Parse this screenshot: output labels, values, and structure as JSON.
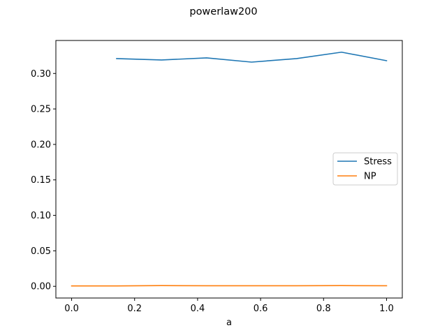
{
  "chart_data": {
    "type": "line",
    "title": "powerlaw200",
    "xlabel": "a",
    "ylabel": "",
    "xlim": [
      -0.05,
      1.05
    ],
    "ylim": [
      -0.0165,
      0.3465
    ],
    "x_ticks": [
      "0.0",
      "0.2",
      "0.4",
      "0.6",
      "0.8",
      "1.0"
    ],
    "y_ticks": [
      "0.00",
      "0.05",
      "0.10",
      "0.15",
      "0.20",
      "0.25",
      "0.30"
    ],
    "x_tick_values": [
      0.0,
      0.2,
      0.4,
      0.6,
      0.8,
      1.0
    ],
    "y_tick_values": [
      0.0,
      0.05,
      0.1,
      0.15,
      0.2,
      0.25,
      0.3
    ],
    "legend_position": "center-right",
    "grid": false,
    "series": [
      {
        "name": "Stress",
        "color": "#1f77b4",
        "x": [
          0.1429,
          0.2857,
          0.4286,
          0.5714,
          0.7143,
          0.8571,
          1.0
        ],
        "y": [
          0.321,
          0.319,
          0.322,
          0.316,
          0.321,
          0.33,
          0.318
        ]
      },
      {
        "name": "NP",
        "color": "#ff7f0e",
        "x": [
          0.0,
          0.1429,
          0.2857,
          0.4286,
          0.5714,
          0.7143,
          0.8571,
          1.0
        ],
        "y": [
          0.0005,
          0.0005,
          0.001,
          0.0008,
          0.0008,
          0.0008,
          0.001,
          0.0008
        ]
      }
    ]
  }
}
